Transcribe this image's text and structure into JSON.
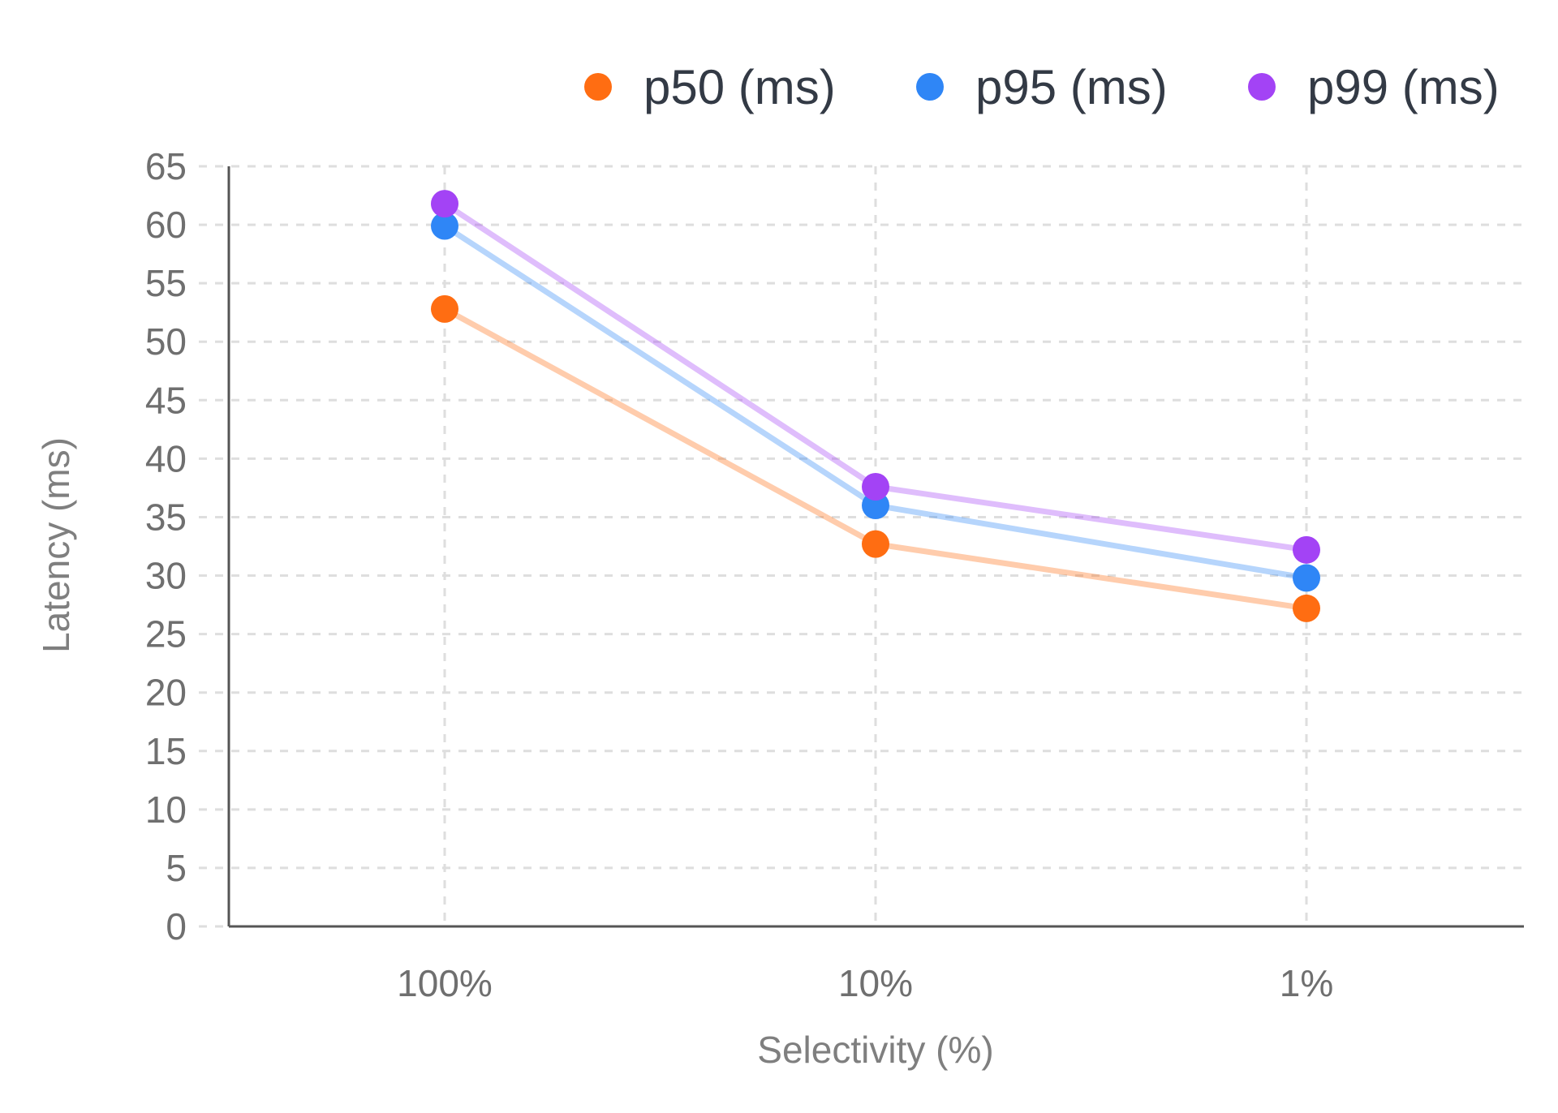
{
  "chart_data": {
    "type": "line",
    "title": "",
    "xlabel": "Selectivity (%)",
    "ylabel": "Latency (ms)",
    "categories": [
      "100%",
      "10%",
      "1%"
    ],
    "ylim": [
      0,
      65
    ],
    "yticks": [
      "0",
      "5",
      "10",
      "15",
      "20",
      "25",
      "30",
      "35",
      "40",
      "45",
      "50",
      "55",
      "60",
      "65"
    ],
    "grid": true,
    "legend_position": "top-right",
    "series": [
      {
        "name": "p50 (ms)",
        "color": "#ff6d12",
        "values": [
          52.8,
          32.7,
          27.2
        ]
      },
      {
        "name": "p95 (ms)",
        "color": "#2f86f6",
        "values": [
          59.9,
          36.0,
          29.8
        ]
      },
      {
        "name": "p99 (ms)",
        "color": "#a343f5",
        "values": [
          61.8,
          37.6,
          32.2
        ]
      }
    ]
  }
}
